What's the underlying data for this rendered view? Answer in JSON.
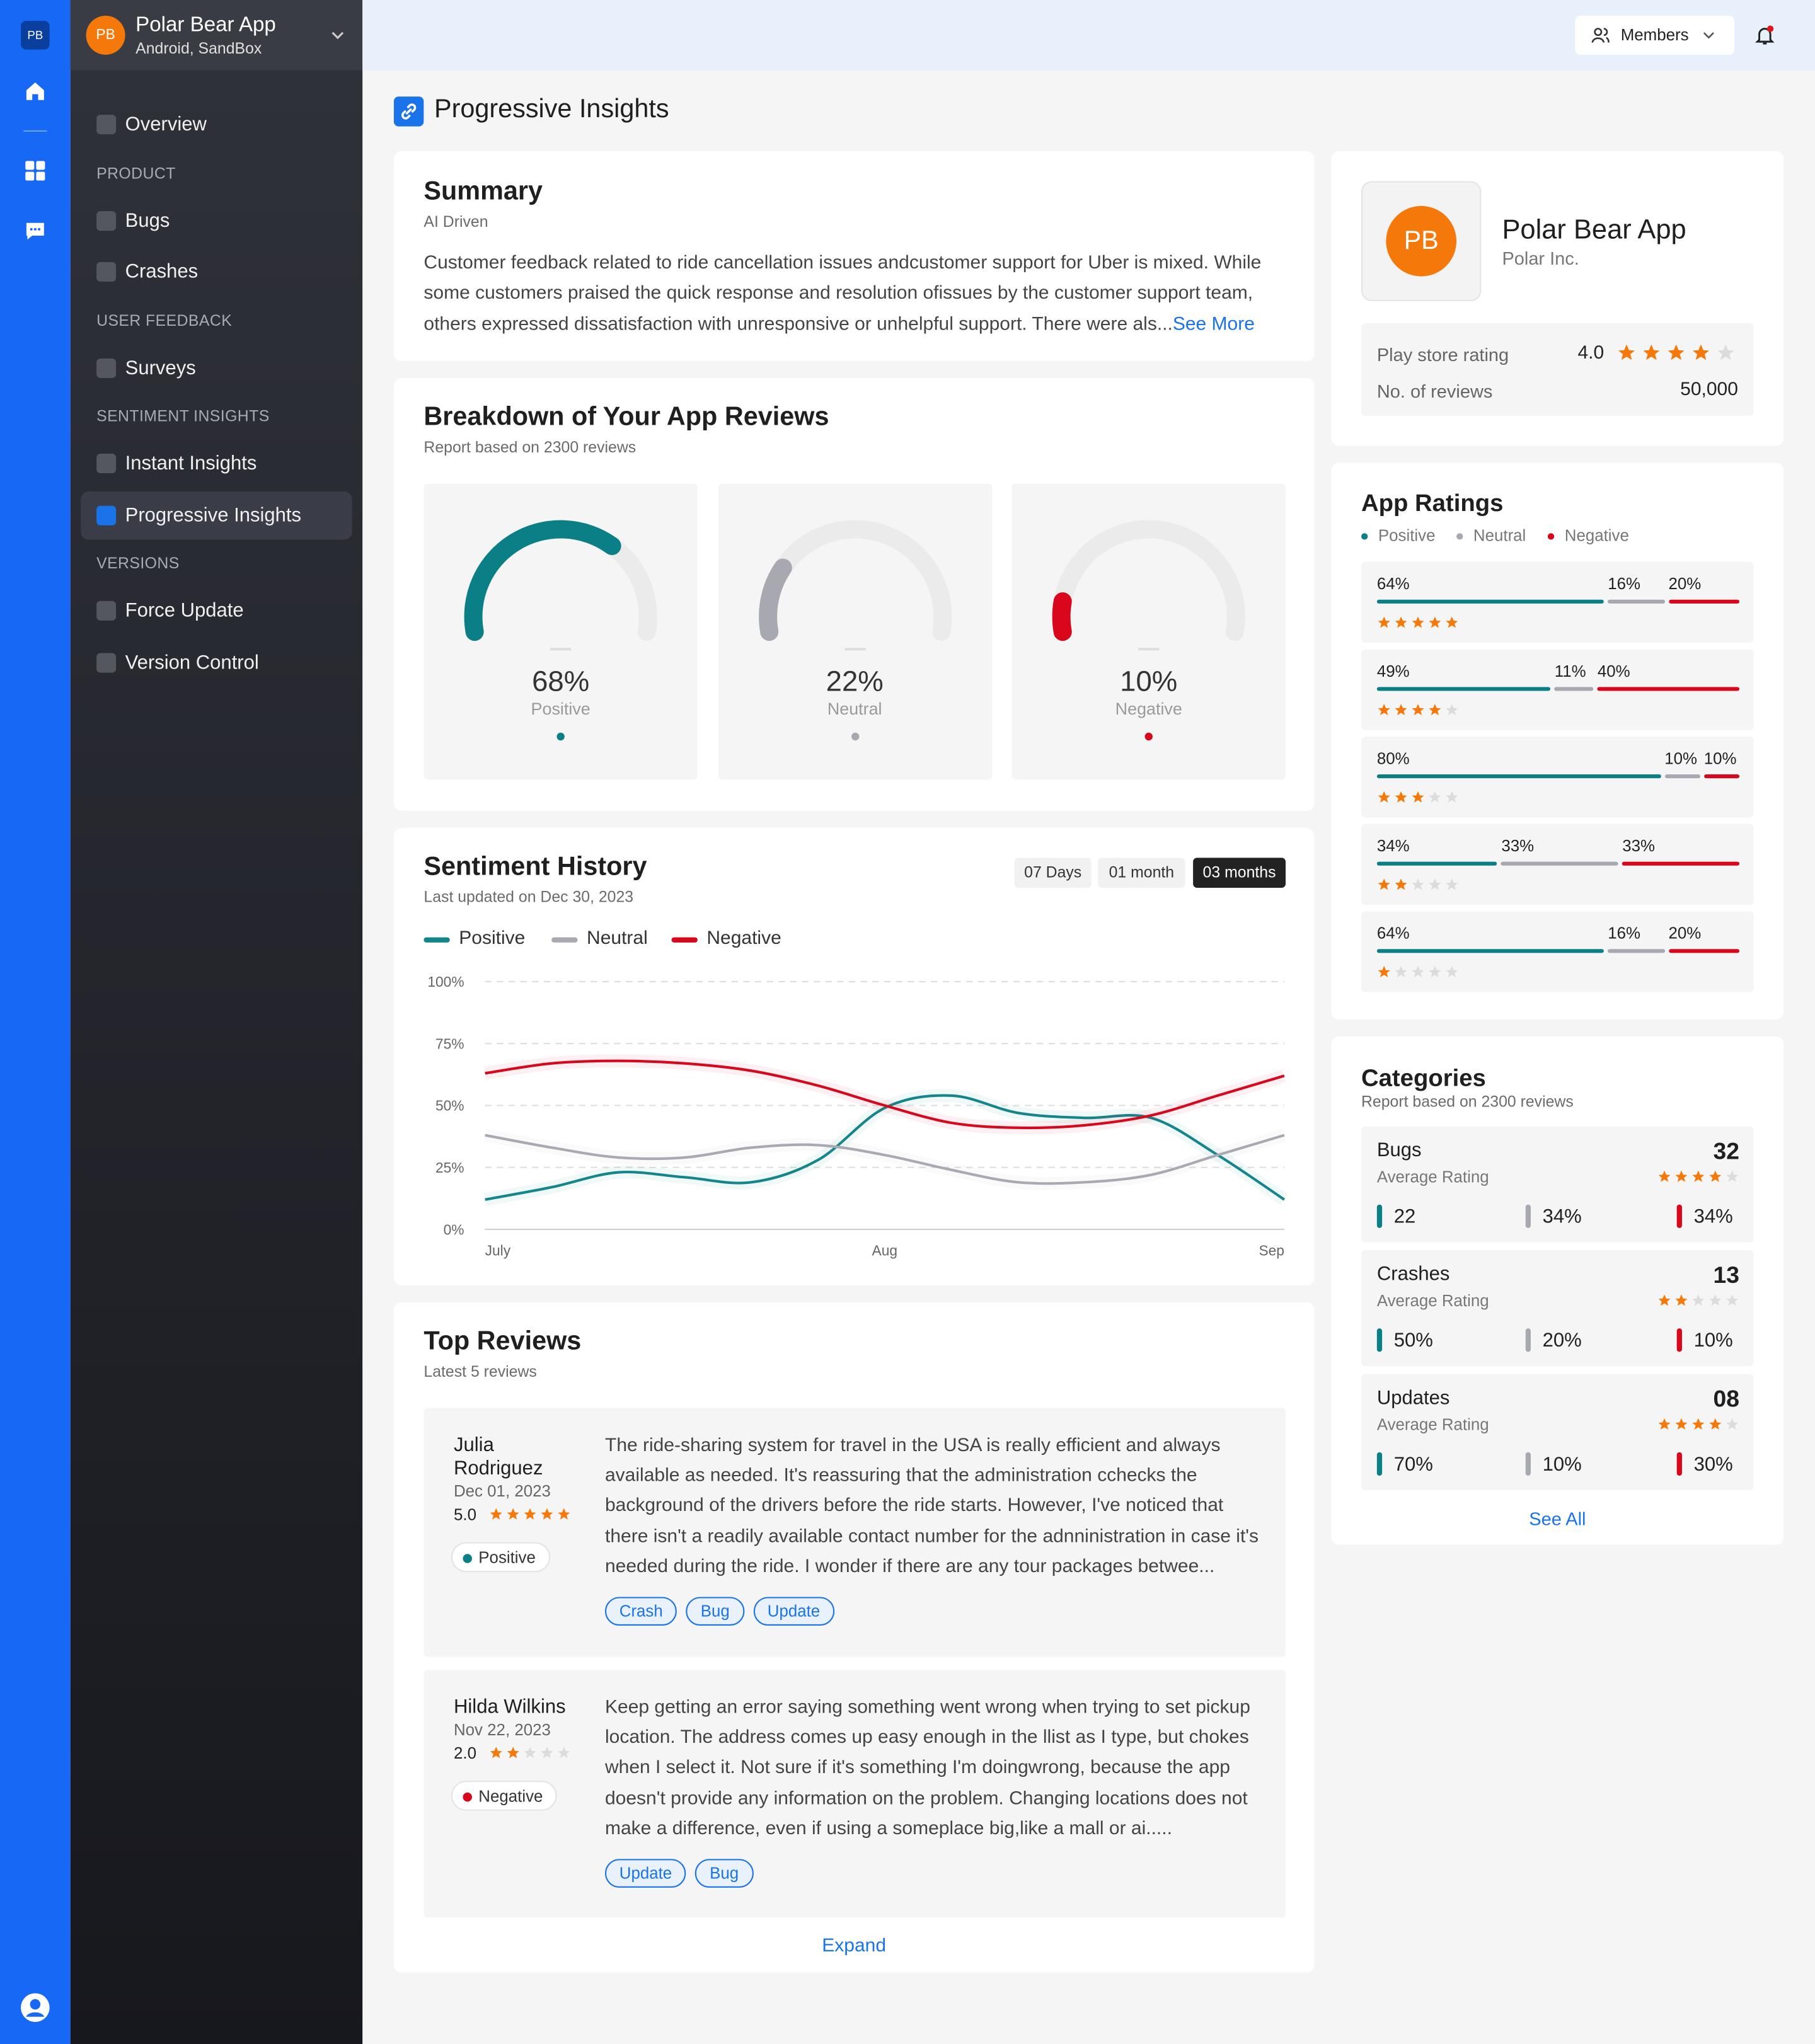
{
  "app": {
    "initials": "PB",
    "name": "Polar Bear App",
    "platform": "Android, SandBox"
  },
  "nav": {
    "groups": [
      {
        "items": [
          {
            "label": "Overview"
          }
        ]
      },
      {
        "heading": "PRODUCT",
        "items": [
          {
            "label": "Bugs"
          },
          {
            "label": "Crashes"
          }
        ]
      },
      {
        "heading": "USER FEEDBACK",
        "items": [
          {
            "label": "Surveys"
          }
        ]
      },
      {
        "heading": "SENTIMENT INSIGHTS",
        "items": [
          {
            "label": "Instant Insights"
          },
          {
            "label": "Progressive Insights",
            "active": true
          }
        ]
      },
      {
        "heading": "VERSIONS",
        "items": [
          {
            "label": "Force Update"
          },
          {
            "label": "Version Control"
          }
        ]
      }
    ]
  },
  "topbar": {
    "members": "Members"
  },
  "page_title": "Progressive Insights",
  "summary": {
    "title": "Summary",
    "subtitle": "AI Driven",
    "text": "Customer feedback related to ride cancellation issues andcustomer support for Uber is mixed. While some customers praised the quick response and resolution ofissues by the customer support team, others expressed dissatisfaction with unresponsive or unhelpful support. There were als...",
    "link": "See More"
  },
  "breakdown": {
    "title": "Breakdown of Your App Reviews",
    "subtitle": "Report based on 2300 reviews",
    "gauges": [
      {
        "value": 68,
        "label": "68%",
        "name": "Positive",
        "color": "#0b7f86"
      },
      {
        "value": 22,
        "label": "22%",
        "name": "Neutral",
        "color": "#a8a8b0"
      },
      {
        "value": 10,
        "label": "10%",
        "name": "Negative",
        "color": "#d9071b"
      }
    ]
  },
  "sentiment_history": {
    "title": "Sentiment History",
    "subtitle": "Last updated on Dec 30, 2023",
    "ranges": [
      "07 Days",
      "01 month",
      "03 months"
    ],
    "selected_range": 2,
    "chart": {
      "type": "line",
      "categories": [
        "July",
        null,
        null,
        null,
        null,
        null,
        "Aug",
        null,
        null,
        null,
        null,
        null,
        "Sep"
      ],
      "series": [
        {
          "name": "Positive",
          "color": "#13868c",
          "values": [
            12,
            17,
            23,
            21,
            19,
            28,
            49,
            54,
            47,
            45,
            45,
            30,
            12
          ]
        },
        {
          "name": "Neutral",
          "color": "#a9a9b1",
          "values": [
            38,
            33,
            29,
            29,
            33,
            34,
            30,
            24,
            19,
            19,
            22,
            30,
            38
          ]
        },
        {
          "name": "Negative",
          "color": "#d9071b",
          "values": [
            63,
            67,
            68,
            67,
            64,
            58,
            50,
            43,
            41,
            42,
            46,
            54,
            62
          ]
        }
      ],
      "ylim": [
        0,
        100
      ],
      "yticks": [
        {
          "value": 0,
          "label": "0%"
        },
        {
          "value": 25,
          "label": "25%"
        },
        {
          "value": 50,
          "label": "50%"
        },
        {
          "value": 75,
          "label": "75%"
        },
        {
          "value": 100,
          "label": "100%"
        }
      ],
      "grid": true
    }
  },
  "top_reviews": {
    "title": "Top Reviews",
    "subtitle": "Latest 5 reviews",
    "expand": "Expand",
    "reviews": [
      {
        "name": "Julia Rodriguez",
        "date": "Dec 01, 2023",
        "rating": {
          "value": 5,
          "label": "5.0"
        },
        "sentiment": "Positive",
        "text": "The ride-sharing system for travel in the USA is really efficient and always available as needed. It's reassuring that the administration cchecks the background of the drivers before the ride starts. However, I've noticed that there isn't a readily available contact number for the adnninistration in case it's needed during the ride. I wonder if there are any tour packages betwee...",
        "tags": [
          "Crash",
          "Bug",
          "Update"
        ]
      },
      {
        "name": "Hilda Wilkins",
        "date": "Nov 22, 2023",
        "rating": {
          "value": 2,
          "label": "2.0"
        },
        "sentiment": "Negative",
        "text": "Keep getting an error saying something went wrong when trying to set pickup location. The address comes up easy enough in the llist as I type, but chokes when I select it. Not sure if it's something I'm doingwrong, because the app doesn't provide any information on the problem. Changing locations does not make a difference, even if using a someplace big,like a mall or ai.....",
        "tags": [
          "Update",
          "Bug"
        ]
      }
    ]
  },
  "app_card": {
    "initials": "PB",
    "name": "Polar Bear App",
    "company": "Polar Inc.",
    "rating_caption": "Play store rating",
    "rating": {
      "value": 4,
      "label": "4.0"
    },
    "reviews_caption": "No. of reviews",
    "reviews": "50,000"
  },
  "app_ratings": {
    "title": "App Ratings",
    "legend": [
      "Positive",
      "Neutral",
      "Negative"
    ],
    "rows": [
      {
        "stars": 5,
        "segments": [
          {
            "value": 64,
            "label": "64%"
          },
          {
            "value": 16,
            "label": "16%"
          },
          {
            "value": 20,
            "label": "20%"
          }
        ]
      },
      {
        "stars": 4,
        "segments": [
          {
            "value": 49,
            "label": "49%"
          },
          {
            "value": 11,
            "label": "11%"
          },
          {
            "value": 40,
            "label": "40%"
          }
        ]
      },
      {
        "stars": 3,
        "segments": [
          {
            "value": 80,
            "label": "80%"
          },
          {
            "value": 10,
            "label": "10%"
          },
          {
            "value": 10,
            "label": "10%"
          }
        ]
      },
      {
        "stars": 2,
        "segments": [
          {
            "value": 34,
            "label": "34%"
          },
          {
            "value": 33,
            "label": "33%"
          },
          {
            "value": 33,
            "label": "33%"
          }
        ]
      },
      {
        "stars": 1,
        "segments": [
          {
            "value": 64,
            "label": "64%"
          },
          {
            "value": 16,
            "label": "16%"
          },
          {
            "value": 20,
            "label": "20%"
          }
        ]
      }
    ]
  },
  "categories": {
    "title": "Categories",
    "subtitle": "Report based on 2300 reviews",
    "see_all": "See All",
    "items": [
      {
        "name": "Bugs",
        "count": "32",
        "caption": "Average Rating",
        "stars": 4,
        "metrics": [
          "22",
          "34%",
          "34%"
        ]
      },
      {
        "name": "Crashes",
        "count": "13",
        "caption": "Average Rating",
        "stars": 2,
        "metrics": [
          "50%",
          "20%",
          "10%"
        ]
      },
      {
        "name": "Updates",
        "count": "08",
        "caption": "Average Rating",
        "stars": 4,
        "metrics": [
          "70%",
          "10%",
          "30%"
        ]
      }
    ]
  }
}
